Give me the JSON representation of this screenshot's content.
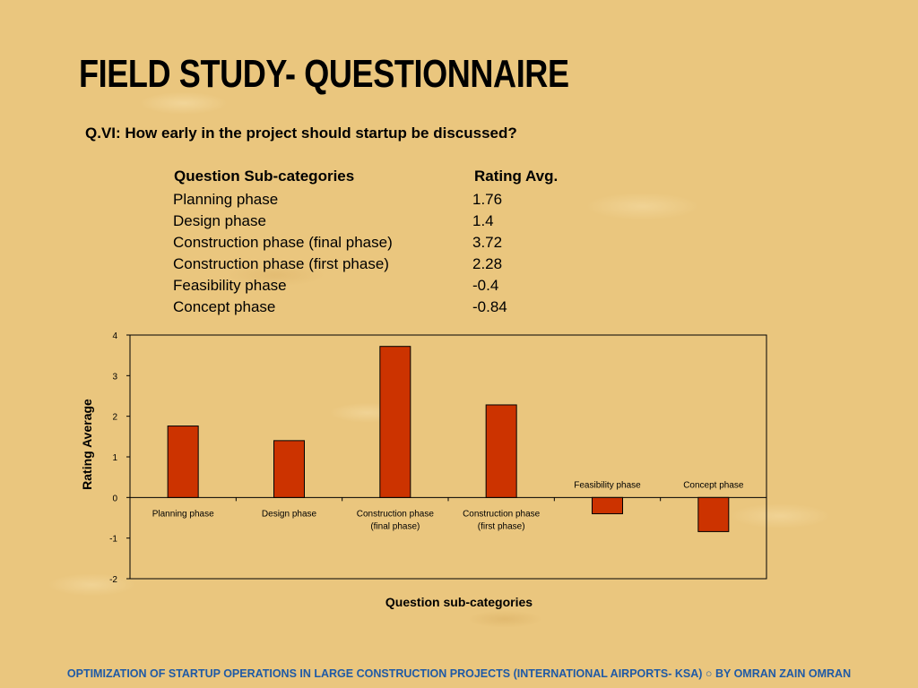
{
  "title": "FIELD STUDY- QUESTIONNAIRE",
  "question": "Q.VI: How early in the project should startup be discussed?",
  "table": {
    "header_category": "Question Sub-categories",
    "header_rating": "Rating Avg.",
    "rows": [
      {
        "label": "Planning phase",
        "value": "1.76"
      },
      {
        "label": "Design phase",
        "value": "1.4"
      },
      {
        "label": "Construction phase (final phase)",
        "value": "3.72"
      },
      {
        "label": "Construction phase (first phase)",
        "value": "2.28"
      },
      {
        "label": "Feasibility phase",
        "value": "-0.4"
      },
      {
        "label": "Concept phase",
        "value": "-0.84"
      }
    ]
  },
  "chart_data": {
    "type": "bar",
    "categories": [
      [
        "Planning phase"
      ],
      [
        "Design phase"
      ],
      [
        "Construction phase",
        "(final phase)"
      ],
      [
        "Construction phase",
        "(first phase)"
      ],
      [
        "Feasibility phase"
      ],
      [
        "Concept phase"
      ]
    ],
    "values": [
      1.76,
      1.4,
      3.72,
      2.28,
      -0.4,
      -0.84
    ],
    "xlabel": "Question sub-categories",
    "ylabel": "Rating Average",
    "ylim": [
      -2,
      4
    ],
    "yticks": [
      4,
      3,
      2,
      1,
      0,
      -1,
      -2
    ],
    "bar_color": "#cc3300",
    "grid": false
  },
  "footer": "OPTIMIZATION OF STARTUP OPERATIONS IN LARGE CONSTRUCTION  PROJECTS (INTERNATIONAL  AIRPORTS- KSA) ○ BY OMRAN ZAIN OMRAN"
}
